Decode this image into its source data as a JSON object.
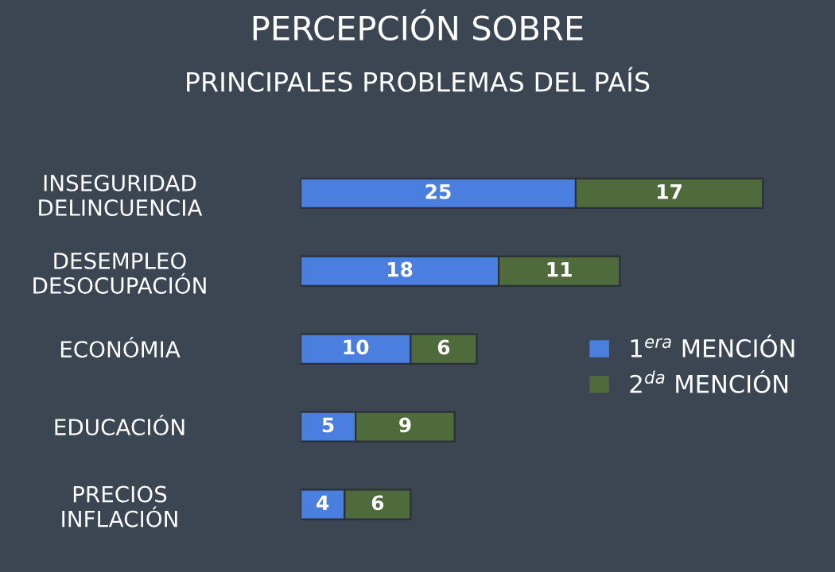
{
  "chart_data": {
    "type": "bar",
    "orientation": "horizontal",
    "stacked": true,
    "title": "PERCEPCIÓN SOBRE",
    "subtitle": "PRINCIPALES PROBLEMAS DEL PAÍS",
    "categories": [
      "INSEGURIDAD\nDELINCUENCIA",
      "DESEMPLEO\nDESOCUPACIÓN",
      "ECONÓMIA",
      "EDUCACIÓN",
      "PRECIOS\nINFLACIÓN"
    ],
    "series": [
      {
        "name": "1$^{era}$ MENCIÓN",
        "color": "#4a7fe0",
        "values": [
          25,
          18,
          10,
          5,
          4
        ]
      },
      {
        "name": "2$^{da}$ MENCIÓN",
        "color": "#4f6b3c",
        "values": [
          17,
          11,
          6,
          9,
          6
        ]
      }
    ],
    "data_labels": true,
    "legend": "right"
  }
}
